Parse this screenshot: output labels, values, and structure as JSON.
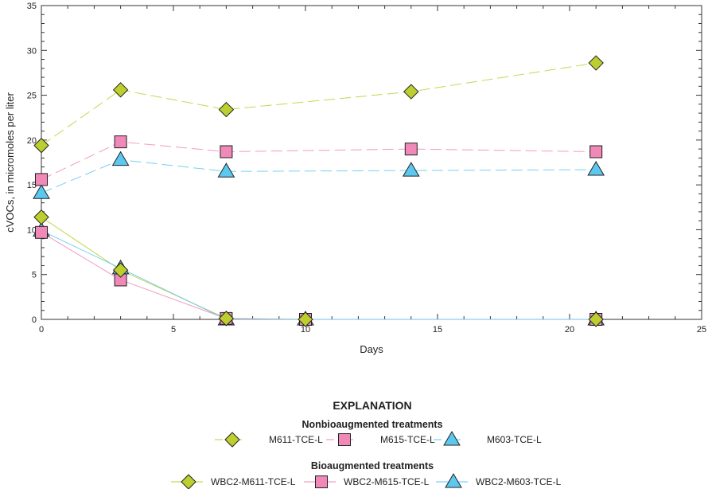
{
  "chart_data": {
    "type": "line",
    "title": "",
    "xlabel": "Days",
    "ylabel": "cVOCs, in micromoles per liter",
    "xlim": [
      0,
      25
    ],
    "ylim": [
      0,
      35
    ],
    "xticks": [
      0,
      5,
      10,
      15,
      20,
      25
    ],
    "yticks": [
      0,
      5,
      10,
      15,
      20,
      25,
      30,
      35
    ],
    "grid": false,
    "legend": {
      "title": "EXPLANATION",
      "groups": [
        {
          "label": "Nonbioaugmented treatments",
          "series": [
            "M611-TCE-L",
            "M615-TCE-L",
            "M603-TCE-L"
          ]
        },
        {
          "label": "Bioaugmented treatments",
          "series": [
            "WBC2-M611-TCE-L",
            "WBC2-M615-TCE-L",
            "WBC2-M603-TCE-L"
          ]
        }
      ],
      "placement": "bottom"
    },
    "series": [
      {
        "name": "M611-TCE-L",
        "marker": "diamond",
        "line": "dashed",
        "color": "#bccf2e",
        "x": [
          0,
          3,
          7,
          14,
          21
        ],
        "y": [
          19.4,
          25.6,
          23.4,
          25.4,
          28.6
        ]
      },
      {
        "name": "M615-TCE-L",
        "marker": "square",
        "line": "dashed",
        "color": "#f088b8",
        "x": [
          0,
          3,
          7,
          14,
          21
        ],
        "y": [
          15.6,
          19.8,
          18.7,
          19.0,
          18.7
        ]
      },
      {
        "name": "M603-TCE-L",
        "marker": "triangle",
        "line": "dashed",
        "color": "#5cc8f0",
        "x": [
          0,
          3,
          7,
          14,
          21
        ],
        "y": [
          14.1,
          17.8,
          16.5,
          16.6,
          16.7
        ]
      },
      {
        "name": "WBC2-M611-TCE-L",
        "marker": "diamond",
        "line": "solid",
        "color": "#bccf2e",
        "x": [
          0,
          3,
          7,
          10,
          21
        ],
        "y": [
          11.4,
          5.5,
          0.1,
          0,
          0
        ]
      },
      {
        "name": "WBC2-M615-TCE-L",
        "marker": "square",
        "line": "solid",
        "color": "#f088b8",
        "x": [
          0,
          3,
          7,
          10,
          21
        ],
        "y": [
          9.7,
          4.4,
          0.1,
          0,
          0
        ]
      },
      {
        "name": "WBC2-M603-TCE-L",
        "marker": "triangle",
        "line": "solid",
        "color": "#5cc8f0",
        "x": [
          0,
          3,
          7,
          10,
          21
        ],
        "y": [
          9.9,
          5.7,
          0,
          0,
          0
        ]
      }
    ]
  }
}
